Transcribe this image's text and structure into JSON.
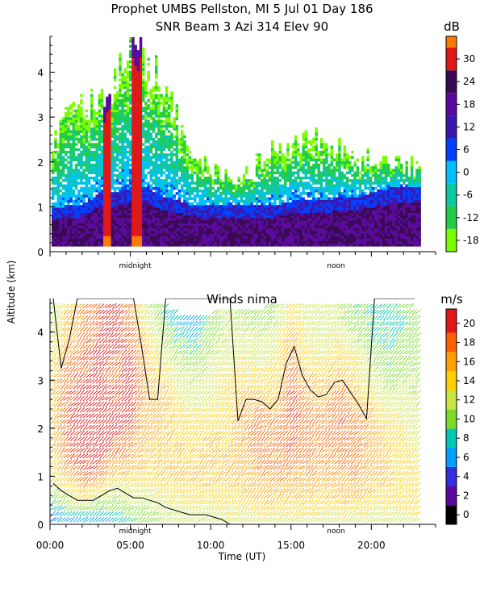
{
  "header": {
    "line1": "Prophet  UMBS Pellston, MI   5 Jul 01 Day 186",
    "line2": "SNR Beam 3 Azi 314 Elev 90"
  },
  "colors": {
    "snr_scale": [
      "#7cfc00",
      "#22cc44",
      "#10c8a0",
      "#00c0ff",
      "#0040ff",
      "#3a18b0",
      "#5a0a9c",
      "#3a0a55",
      "#e01818",
      "#ff7a00",
      "#ffc400"
    ],
    "wind_scale": [
      "#000000",
      "#5a0a9c",
      "#3030e0",
      "#00a0ff",
      "#00c8b4",
      "#7cdc28",
      "#c8e640",
      "#ffd000",
      "#ffa000",
      "#ff6000",
      "#e01818"
    ]
  },
  "chart_data": [
    {
      "type": "heatmap",
      "title": "SNR Beam 3 Azi 314 Elev 90",
      "xlabel": "Time (UT)",
      "ylabel": "Altitude (km)",
      "x_range_hours": [
        0,
        24
      ],
      "ylim": [
        0,
        4.8
      ],
      "yticks": [
        0,
        1,
        2,
        3,
        4
      ],
      "x_markers": [
        {
          "label": "midnight",
          "hour": 5.3
        },
        {
          "label": "noon",
          "hour": 17.8
        }
      ],
      "colorbar": {
        "unit": "dB",
        "ticks": [
          -18,
          -12,
          -6,
          0,
          6,
          12,
          18,
          24,
          30
        ]
      },
      "profile_top_km": [
        2.6,
        3.0,
        3.2,
        3.5,
        3.9,
        4.7,
        4.3,
        3.6,
        2.9,
        2.2,
        1.9,
        1.6,
        1.7,
        2.1,
        2.3,
        2.4,
        2.7,
        2.5,
        2.3,
        2.0,
        2.1,
        2.1,
        1.9,
        1.9
      ],
      "boundary_layer_km": [
        0.9,
        1.0,
        1.0,
        1.3,
        1.3,
        1.4,
        1.4,
        1.2,
        1.1,
        1.0,
        1.0,
        1.0,
        1.0,
        1.0,
        1.0,
        1.1,
        1.1,
        1.1,
        1.2,
        1.2,
        1.3,
        1.4,
        1.4,
        1.4
      ],
      "strong_echo_hours": [
        3.5,
        5.3
      ]
    },
    {
      "type": "wind_barbs",
      "title": "Winds nima",
      "xlabel": "Time (UT)",
      "ylabel": "Altitude (km)",
      "xticks": [
        "00:00",
        "05:00",
        "10:00",
        "15:00",
        "20:00"
      ],
      "xtick_hours": [
        0,
        5,
        10,
        15,
        20
      ],
      "x_range_hours": [
        0,
        24
      ],
      "ylim": [
        0,
        4.7
      ],
      "yticks": [
        0,
        1,
        2,
        3,
        4
      ],
      "x_markers": [
        {
          "label": "midnight",
          "hour": 5.3
        },
        {
          "label": "noon",
          "hour": 17.8
        }
      ],
      "colorbar": {
        "unit": "m/s",
        "ticks": [
          0,
          2,
          4,
          6,
          8,
          10,
          12,
          14,
          16,
          18,
          20
        ]
      },
      "column_top_km": [
        4.6,
        4.6,
        4.6,
        4.6,
        4.6,
        4.6,
        4.6,
        4.6,
        4.4,
        4.3,
        4.4,
        4.5,
        4.5,
        4.5,
        4.6,
        4.6,
        4.6,
        4.6,
        4.6,
        4.6,
        4.6,
        4.6,
        4.6,
        4.5
      ],
      "speed_ms": [
        [
          4,
          9,
          13,
          14,
          14,
          14,
          13,
          12,
          11,
          10
        ],
        [
          5,
          11,
          16,
          18,
          19,
          19,
          18,
          16,
          15,
          14
        ],
        [
          6,
          13,
          19,
          20,
          20,
          20,
          19,
          18,
          17,
          17
        ],
        [
          5,
          12,
          19,
          20,
          21,
          20,
          20,
          20,
          19,
          19
        ],
        [
          7,
          10,
          15,
          19,
          20,
          19,
          18,
          20,
          20,
          20
        ],
        [
          8,
          12,
          15,
          17,
          19,
          20,
          20,
          19,
          18,
          17
        ],
        [
          9,
          12,
          14,
          15,
          16,
          16,
          16,
          15,
          13,
          12
        ],
        [
          10,
          13,
          15,
          15,
          16,
          16,
          14,
          12,
          10,
          8
        ],
        [
          11,
          13,
          15,
          15,
          14,
          13,
          12,
          10,
          7,
          5
        ],
        [
          11,
          14,
          15,
          15,
          14,
          12,
          11,
          9,
          6,
          4
        ],
        [
          11,
          14,
          15,
          15,
          14,
          13,
          12,
          11,
          10,
          9
        ],
        [
          12,
          14,
          15,
          15,
          14,
          14,
          13,
          12,
          11,
          11
        ],
        [
          12,
          14,
          16,
          16,
          17,
          16,
          14,
          12,
          11,
          10
        ],
        [
          12,
          15,
          17,
          18,
          18,
          16,
          14,
          12,
          11,
          10
        ],
        [
          12,
          15,
          17,
          17,
          17,
          15,
          13,
          12,
          11,
          10
        ],
        [
          12,
          15,
          17,
          19,
          19,
          20,
          18,
          17,
          15,
          14
        ],
        [
          12,
          15,
          17,
          18,
          18,
          17,
          15,
          13,
          12,
          12
        ],
        [
          12,
          14,
          16,
          17,
          17,
          16,
          14,
          12,
          12,
          12
        ],
        [
          12,
          15,
          17,
          18,
          19,
          18,
          16,
          14,
          12,
          11
        ],
        [
          12,
          15,
          17,
          18,
          18,
          16,
          14,
          12,
          10,
          9
        ],
        [
          12,
          14,
          16,
          16,
          16,
          14,
          12,
          10,
          9,
          9
        ],
        [
          12,
          14,
          15,
          15,
          14,
          12,
          10,
          9,
          8,
          9
        ],
        [
          12,
          14,
          14,
          14,
          13,
          12,
          11,
          10,
          9,
          10
        ],
        [
          12,
          14,
          14,
          13,
          12,
          11,
          11,
          10,
          10,
          10
        ]
      ]
    }
  ]
}
